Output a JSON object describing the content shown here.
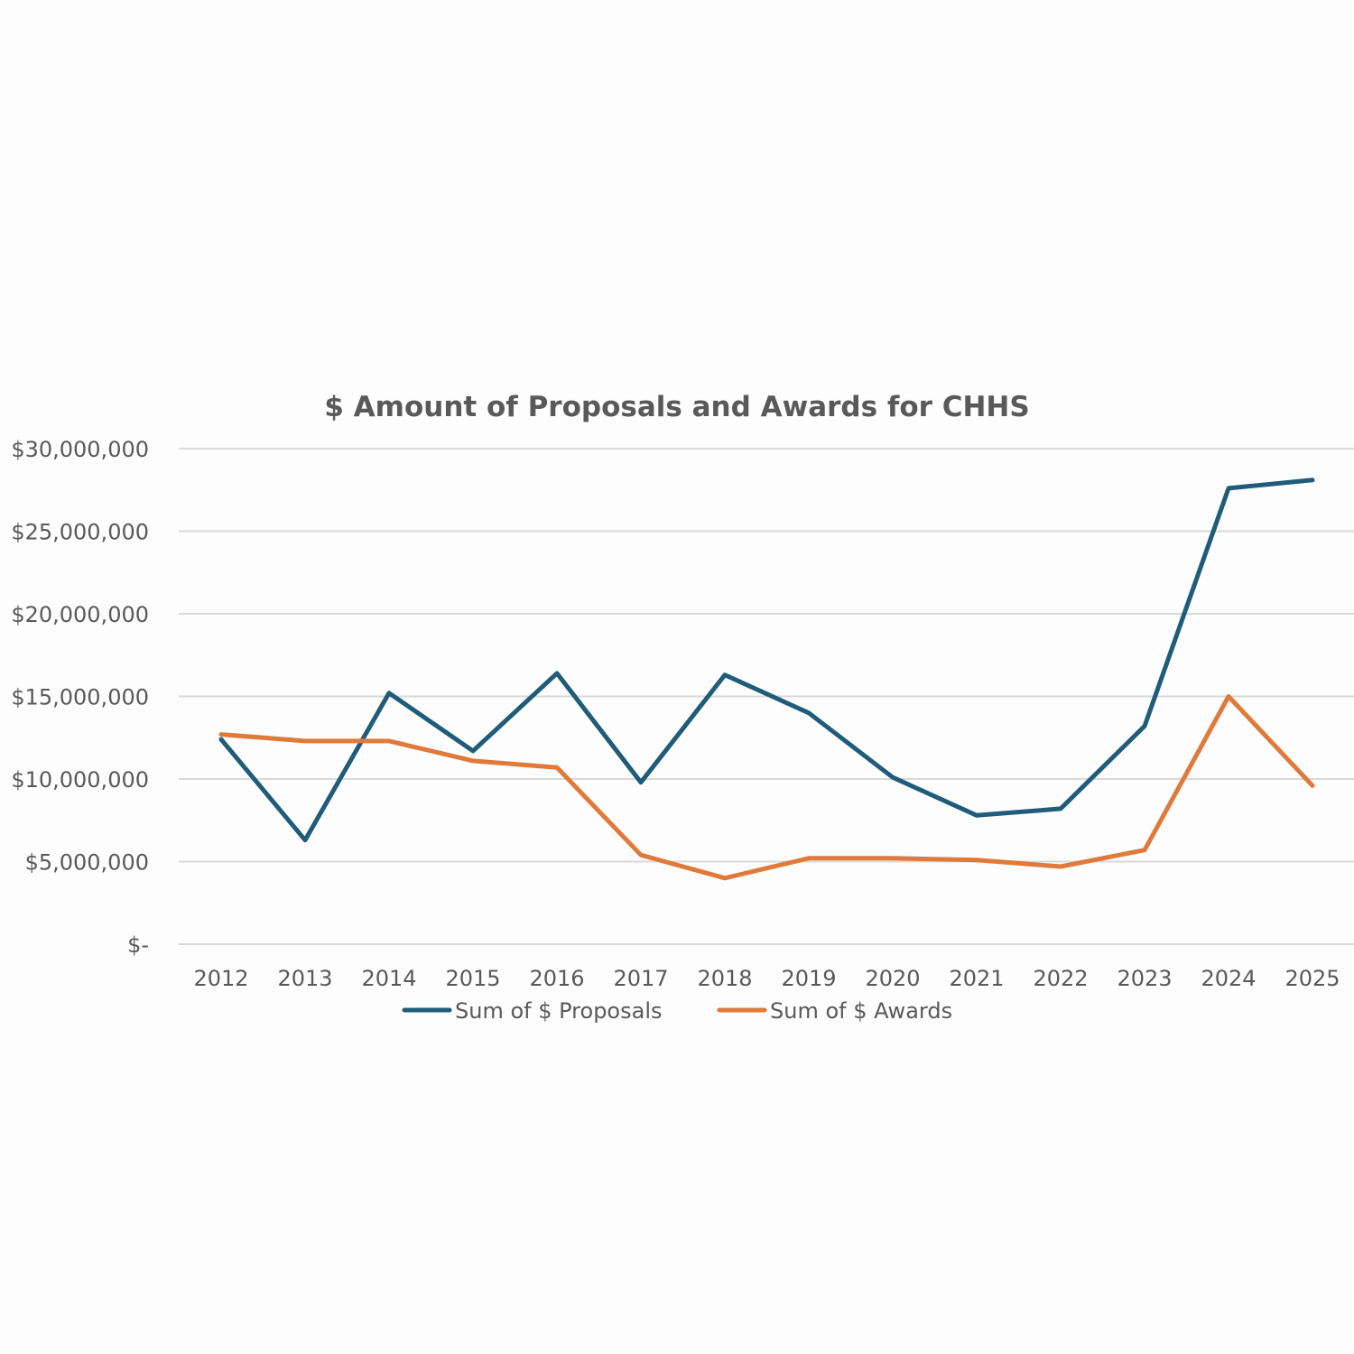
{
  "chart_data": {
    "type": "line",
    "title": "$ Amount of Proposals and Awards for CHHS",
    "xlabel": "",
    "ylabel": "",
    "categories": [
      "2012",
      "2013",
      "2014",
      "2015",
      "2016",
      "2017",
      "2018",
      "2019",
      "2020",
      "2021",
      "2022",
      "2023",
      "2024",
      "2025"
    ],
    "series": [
      {
        "name": "Sum of $ Proposals",
        "color": "#1f5c7a",
        "values": [
          12400000,
          6300000,
          15200000,
          11700000,
          16400000,
          9800000,
          16300000,
          14000000,
          10100000,
          7800000,
          8200000,
          13200000,
          27600000,
          28100000
        ]
      },
      {
        "name": "Sum of $ Awards",
        "color": "#e07a3a",
        "values": [
          12700000,
          12300000,
          12300000,
          11100000,
          10700000,
          5400000,
          4000000,
          5200000,
          5200000,
          5100000,
          4700000,
          5700000,
          15000000,
          9600000
        ]
      }
    ],
    "ylim": [
      0,
      30000000
    ],
    "yticks": [
      0,
      5000000,
      10000000,
      15000000,
      20000000,
      25000000,
      30000000
    ],
    "ytick_labels": [
      "$-",
      "$5,000,000",
      "$10,000,000",
      "$15,000,000",
      "$20,000,000",
      "$25,000,000",
      "$30,000,000"
    ],
    "grid": true,
    "legend_position": "bottom"
  }
}
